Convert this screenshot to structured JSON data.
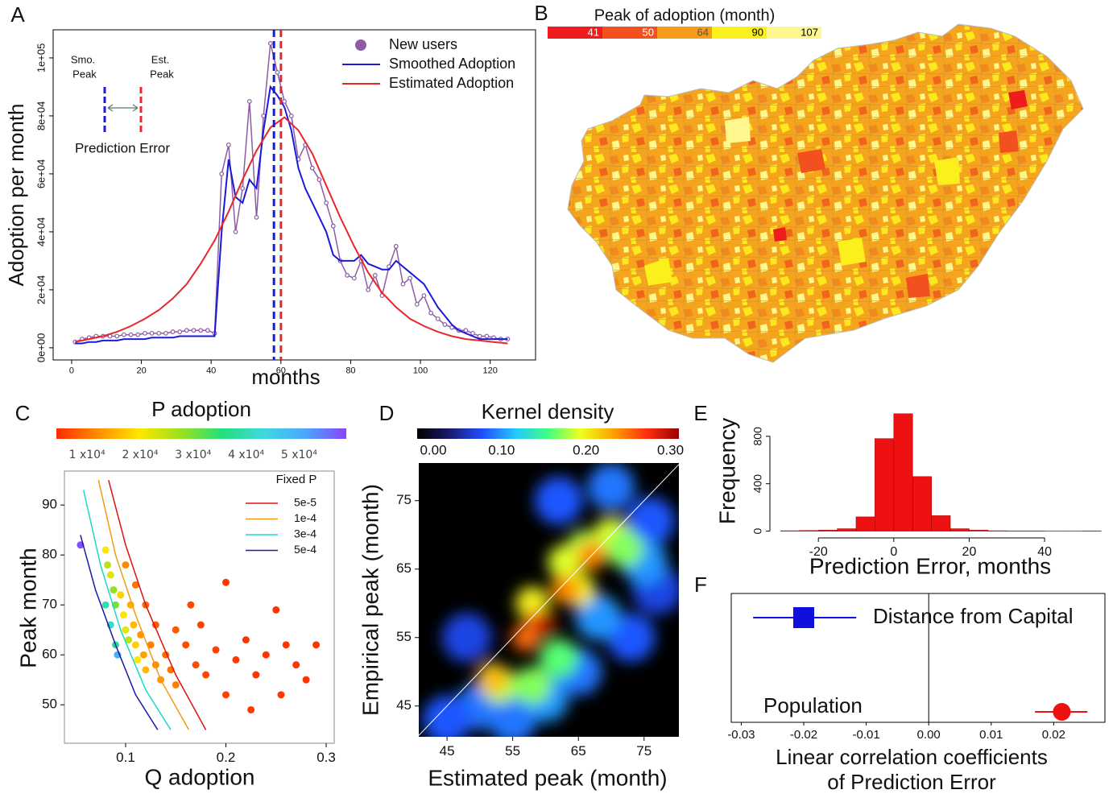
{
  "chart_data": [
    {
      "type": "line",
      "label": "A",
      "xlabel": "months",
      "ylabel": "Adoption per month",
      "xlim": [
        -5.3,
        133
      ],
      "xticks": [
        0,
        20,
        40,
        60,
        80,
        100,
        120
      ],
      "ylim": [
        -4200,
        109700
      ],
      "yticks": [
        {
          "value": 0,
          "label": "0e+00"
        },
        {
          "value": 20000,
          "label": "2e+04"
        },
        {
          "value": 40000,
          "label": "4e+04"
        },
        {
          "value": 60000,
          "label": "6e+04"
        },
        {
          "value": 80000,
          "label": "8e+04"
        },
        {
          "value": 100000,
          "label": "1e+05"
        }
      ],
      "series": [
        {
          "name": "New users",
          "color": "#8e5ba6",
          "marker": "circle",
          "x": [
            1,
            3,
            5,
            7,
            9,
            11,
            13,
            15,
            17,
            19,
            21,
            23,
            25,
            27,
            29,
            31,
            33,
            35,
            37,
            39,
            41,
            43,
            45,
            47,
            49,
            51,
            53,
            55,
            57,
            59,
            61,
            63,
            65,
            67,
            69,
            71,
            73,
            75,
            77,
            79,
            81,
            83,
            85,
            87,
            89,
            91,
            93,
            95,
            97,
            99,
            101,
            103,
            105,
            107,
            109,
            111,
            113,
            115,
            117,
            119,
            121,
            123,
            125
          ],
          "values": [
            2000,
            3000,
            3500,
            4000,
            4000,
            4000,
            4000,
            4500,
            4500,
            4500,
            5000,
            5000,
            5000,
            5000,
            5500,
            5500,
            6000,
            6000,
            6000,
            6000,
            5000,
            60000,
            70000,
            40000,
            55000,
            85000,
            45000,
            80000,
            105000,
            95000,
            85000,
            80000,
            65000,
            70000,
            62000,
            58000,
            50000,
            42000,
            30000,
            25000,
            24000,
            30000,
            20000,
            25000,
            18000,
            28000,
            35000,
            22000,
            24000,
            15000,
            18000,
            12000,
            10000,
            8000,
            7000,
            6000,
            6000,
            5000,
            4000,
            4000,
            3500,
            3000,
            3000
          ]
        },
        {
          "name": "Smoothed Adoption",
          "color": "#1a1adb",
          "x": [
            1,
            3,
            5,
            7,
            9,
            11,
            13,
            15,
            17,
            19,
            21,
            23,
            25,
            27,
            29,
            31,
            33,
            35,
            37,
            39,
            41,
            43,
            45,
            47,
            49,
            51,
            53,
            55,
            57,
            59,
            61,
            63,
            65,
            67,
            69,
            71,
            73,
            75,
            77,
            79,
            81,
            83,
            85,
            87,
            89,
            91,
            93,
            95,
            97,
            99,
            101,
            103,
            105,
            107,
            109,
            111,
            113,
            115,
            117,
            119,
            121,
            123,
            125
          ],
          "values": [
            1500,
            1500,
            2000,
            2000,
            2500,
            2500,
            2500,
            3000,
            3000,
            3000,
            3000,
            3500,
            3500,
            3500,
            3500,
            4000,
            4000,
            4000,
            4000,
            4000,
            4000,
            40000,
            65000,
            52000,
            50000,
            58000,
            55000,
            75000,
            90000,
            87000,
            83000,
            75000,
            62000,
            55000,
            50000,
            45000,
            40000,
            32000,
            30000,
            30000,
            30000,
            32000,
            29000,
            28000,
            27000,
            27000,
            30000,
            28000,
            26000,
            24000,
            22000,
            18000,
            14000,
            11000,
            8000,
            6000,
            5000,
            4000,
            3000,
            3000,
            3000,
            3000,
            3000
          ]
        },
        {
          "name": "Estimated Adoption",
          "color": "#e8262b",
          "x": [
            1,
            5,
            9,
            13,
            17,
            21,
            25,
            29,
            33,
            37,
            41,
            45,
            49,
            53,
            57,
            61,
            65,
            69,
            73,
            77,
            81,
            85,
            89,
            93,
            97,
            101,
            105,
            109,
            113,
            117,
            121,
            125
          ],
          "values": [
            2000,
            3000,
            4000,
            5500,
            7500,
            10000,
            13000,
            17000,
            22000,
            29000,
            37000,
            47000,
            58000,
            68000,
            76000,
            79500,
            75000,
            67000,
            56000,
            45000,
            35000,
            26000,
            19000,
            14000,
            10000,
            7500,
            5500,
            4000,
            3000,
            2500,
            2000,
            1500
          ]
        }
      ],
      "peaks": [
        {
          "x": 58,
          "color": "#1a1adb"
        },
        {
          "x": 60,
          "color": "#e8262b"
        }
      ],
      "annotations": {
        "smoothed_peak": [
          "Smo.",
          "Peak"
        ],
        "estimated_peak": [
          "Est.",
          "Peak"
        ],
        "error": "Prediction Error"
      }
    },
    {
      "type": "map",
      "label": "B",
      "title": "Peak of adoption (month)",
      "colorbar": {
        "ticks": [
          41,
          50,
          64,
          90,
          107
        ],
        "colors": [
          "#ee1c1c",
          "#f2511f",
          "#f59c1a",
          "#fbf01c",
          "#fdf78e"
        ]
      }
    },
    {
      "type": "scatter",
      "label": "C",
      "xlabel": "Q adoption",
      "ylabel": "Peak month",
      "xlim": [
        0.039,
        0.308
      ],
      "xticks": [
        0.1,
        0.2,
        0.3
      ],
      "ylim": [
        42.3,
        96.8
      ],
      "yticks": [
        50,
        60,
        70,
        80,
        90
      ],
      "colorbar": {
        "title": "P adoption",
        "lim": [
          4200,
          58900
        ],
        "ticks": [
          {
            "value": 10000,
            "label": "1 x10⁴"
          },
          {
            "value": 20000,
            "label": "2 x10⁴"
          },
          {
            "value": 30000,
            "label": "3 x10⁴"
          },
          {
            "value": 40000,
            "label": "4 x10⁴"
          },
          {
            "value": 50000,
            "label": "5 x10⁴"
          }
        ],
        "colors": [
          "#ff2a00",
          "#ff8c00",
          "#ffe600",
          "#9be01e",
          "#22e07a",
          "#3fd8e0",
          "#4aa8ff",
          "#8844ff"
        ]
      },
      "x": [
        0.055,
        0.08,
        0.082,
        0.085,
        0.088,
        0.09,
        0.08,
        0.085,
        0.09,
        0.092,
        0.095,
        0.098,
        0.1,
        0.103,
        0.105,
        0.108,
        0.11,
        0.112,
        0.115,
        0.118,
        0.12,
        0.125,
        0.13,
        0.135,
        0.14,
        0.145,
        0.15,
        0.1,
        0.11,
        0.12,
        0.13,
        0.16,
        0.17,
        0.175,
        0.18,
        0.19,
        0.2,
        0.2,
        0.21,
        0.22,
        0.225,
        0.23,
        0.24,
        0.25,
        0.255,
        0.26,
        0.27,
        0.28,
        0.29,
        0.15,
        0.165
      ],
      "values": [
        82,
        81,
        78,
        76,
        73,
        70,
        70,
        66,
        62,
        60,
        72,
        68,
        65,
        63,
        70,
        66,
        62,
        59,
        64,
        60,
        57,
        62,
        58,
        55,
        60,
        57,
        54,
        78,
        74,
        70,
        66,
        62,
        58,
        66,
        56,
        61,
        74.5,
        52,
        59,
        63,
        49,
        56,
        60,
        69,
        52,
        62,
        58,
        55,
        62,
        65,
        70
      ],
      "p": [
        58000,
        20000,
        25000,
        22000,
        28000,
        30000,
        40000,
        42000,
        38000,
        50000,
        18000,
        20000,
        22000,
        25000,
        15000,
        16000,
        18000,
        20000,
        13000,
        14000,
        16000,
        11000,
        12000,
        13000,
        9000,
        10000,
        11000,
        12000,
        10000,
        9000,
        8000,
        7000,
        7000,
        6000,
        6500,
        6000,
        5000,
        6000,
        5500,
        5000,
        5500,
        5000,
        5000,
        5000,
        5000,
        5000,
        5000,
        5000,
        5000,
        8000,
        6500
      ],
      "lines_title": "Fixed P",
      "lines": [
        {
          "name": "5e-5",
          "color": "#e01010",
          "x": [
            0.083,
            0.1,
            0.12,
            0.15,
            0.18
          ],
          "values": [
            95,
            82,
            70,
            56,
            45
          ]
        },
        {
          "name": "1e-4",
          "color": "#f39a12",
          "x": [
            0.073,
            0.09,
            0.11,
            0.135,
            0.163
          ],
          "values": [
            95,
            80,
            68,
            55,
            45
          ]
        },
        {
          "name": "3e-4",
          "color": "#1fd8c8",
          "x": [
            0.058,
            0.075,
            0.095,
            0.12,
            0.145
          ],
          "values": [
            93,
            78,
            65,
            53,
            45
          ]
        },
        {
          "name": "5e-4",
          "color": "#1a1aaa",
          "x": [
            0.055,
            0.07,
            0.09,
            0.11,
            0.132
          ],
          "values": [
            84,
            73,
            62,
            52,
            45
          ]
        }
      ]
    },
    {
      "type": "heatmap",
      "label": "D",
      "xlabel": "Estimated peak (month)",
      "ylabel": "Empirical peak (month)",
      "xlim": [
        40.7,
        80.3
      ],
      "xticks": [
        45,
        55,
        65,
        75
      ],
      "ylim": [
        40.5,
        80.5
      ],
      "yticks": [
        45,
        55,
        65,
        75
      ],
      "colorbar": {
        "title": "Kernel density",
        "lim": [
          0,
          0.31
        ],
        "ticks": [
          {
            "value": 0,
            "label": "0.00"
          },
          {
            "value": 0.1,
            "label": "0.10"
          },
          {
            "value": 0.2,
            "label": "0.20"
          },
          {
            "value": 0.3,
            "label": "0.30"
          }
        ],
        "colors": [
          "#000000",
          "#1a1a6e",
          "#1f4fff",
          "#22c8ff",
          "#40ff80",
          "#f0ff20",
          "#ffa000",
          "#ff3010",
          "#9a0000"
        ]
      },
      "x": [
        62,
        70,
        76,
        77,
        73,
        65,
        50,
        45,
        55,
        60,
        48,
        68,
        75,
        53,
        58,
        66,
        70,
        63,
        58,
        65,
        72,
        62,
        59,
        63,
        67,
        57,
        52,
        60
      ],
      "y": [
        75,
        77,
        72,
        62,
        55,
        50,
        45,
        43,
        43,
        46,
        55,
        58,
        66,
        48,
        48,
        68,
        70,
        66,
        60,
        62,
        68,
        52,
        57,
        62,
        67,
        55,
        49,
        57
      ],
      "values": [
        0.08,
        0.09,
        0.08,
        0.07,
        0.08,
        0.09,
        0.09,
        0.08,
        0.09,
        0.1,
        0.07,
        0.1,
        0.1,
        0.18,
        0.17,
        0.18,
        0.19,
        0.19,
        0.2,
        0.2,
        0.17,
        0.16,
        0.26,
        0.24,
        0.24,
        0.25,
        0.22,
        0.3
      ]
    },
    {
      "type": "histogram",
      "label": "E",
      "xlabel": "Prediction Error, months",
      "ylabel": "Frequency",
      "color": "#ee1111",
      "bins": [
        -30,
        -25,
        -20,
        -15,
        -10,
        -5,
        0,
        5,
        10,
        15,
        20,
        25,
        30,
        35,
        40,
        45,
        50,
        55
      ],
      "values": [
        3,
        5,
        8,
        20,
        120,
        780,
        990,
        460,
        130,
        20,
        8,
        3,
        2,
        2,
        1,
        1,
        2
      ],
      "xlim": [
        -32,
        56
      ],
      "xticks": [
        -20,
        0,
        20,
        40
      ],
      "ylim": [
        -30,
        1050
      ],
      "yticks": [
        0,
        400,
        800
      ]
    },
    {
      "type": "forest",
      "label": "F",
      "xlabel": [
        "Linear correlation coefficients",
        "of Prediction Error"
      ],
      "xlim": [
        -0.0316,
        0.0282
      ],
      "xticks": [
        -0.03,
        -0.02,
        -0.01,
        {
          "value": 0,
          "label": "0.00"
        },
        0.01,
        0.02
      ],
      "categories": [
        "Distance from Capital",
        "Population"
      ],
      "values": [
        -0.02,
        0.0213
      ],
      "lower": [
        -0.0281,
        0.017
      ],
      "upper": [
        -0.0116,
        0.0254
      ],
      "colors": [
        "#1010dd",
        "#ee1111"
      ],
      "markers": [
        "square",
        "circle"
      ]
    }
  ]
}
